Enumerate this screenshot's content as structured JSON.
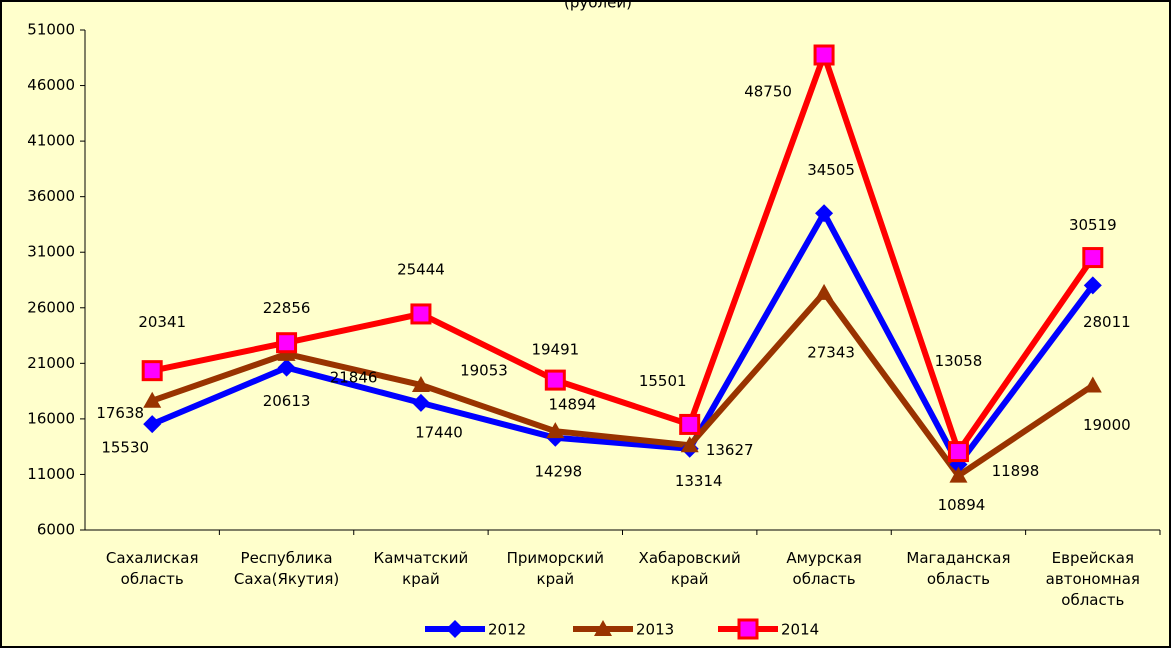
{
  "chart_data": {
    "type": "line",
    "title": "(рублей)",
    "categories": [
      "Сахалиская область",
      "Республика Саха(Якутия)",
      "Камчатский край",
      "Приморский край",
      "Хабаровский край",
      "Амурская область",
      "Магаданская область",
      "Еврейская автономная область"
    ],
    "series": [
      {
        "name": "2012",
        "color": "#0000ff",
        "marker": "diamond",
        "values": [
          15530,
          20613,
          17440,
          14298,
          13314,
          34505,
          11898,
          28011
        ]
      },
      {
        "name": "2013",
        "color": "#993300",
        "marker": "triangle",
        "values": [
          17638,
          21846,
          19053,
          14894,
          13627,
          27343,
          10894,
          19000
        ]
      },
      {
        "name": "2014",
        "color": "#ff0000",
        "marker": "square",
        "values": [
          20341,
          22856,
          25444,
          19491,
          15501,
          48750,
          13058,
          30519
        ]
      }
    ],
    "ylim": [
      6000,
      51000
    ],
    "yticks": [
      6000,
      11000,
      16000,
      21000,
      26000,
      31000,
      36000,
      41000,
      46000,
      51000
    ],
    "grid": false
  }
}
